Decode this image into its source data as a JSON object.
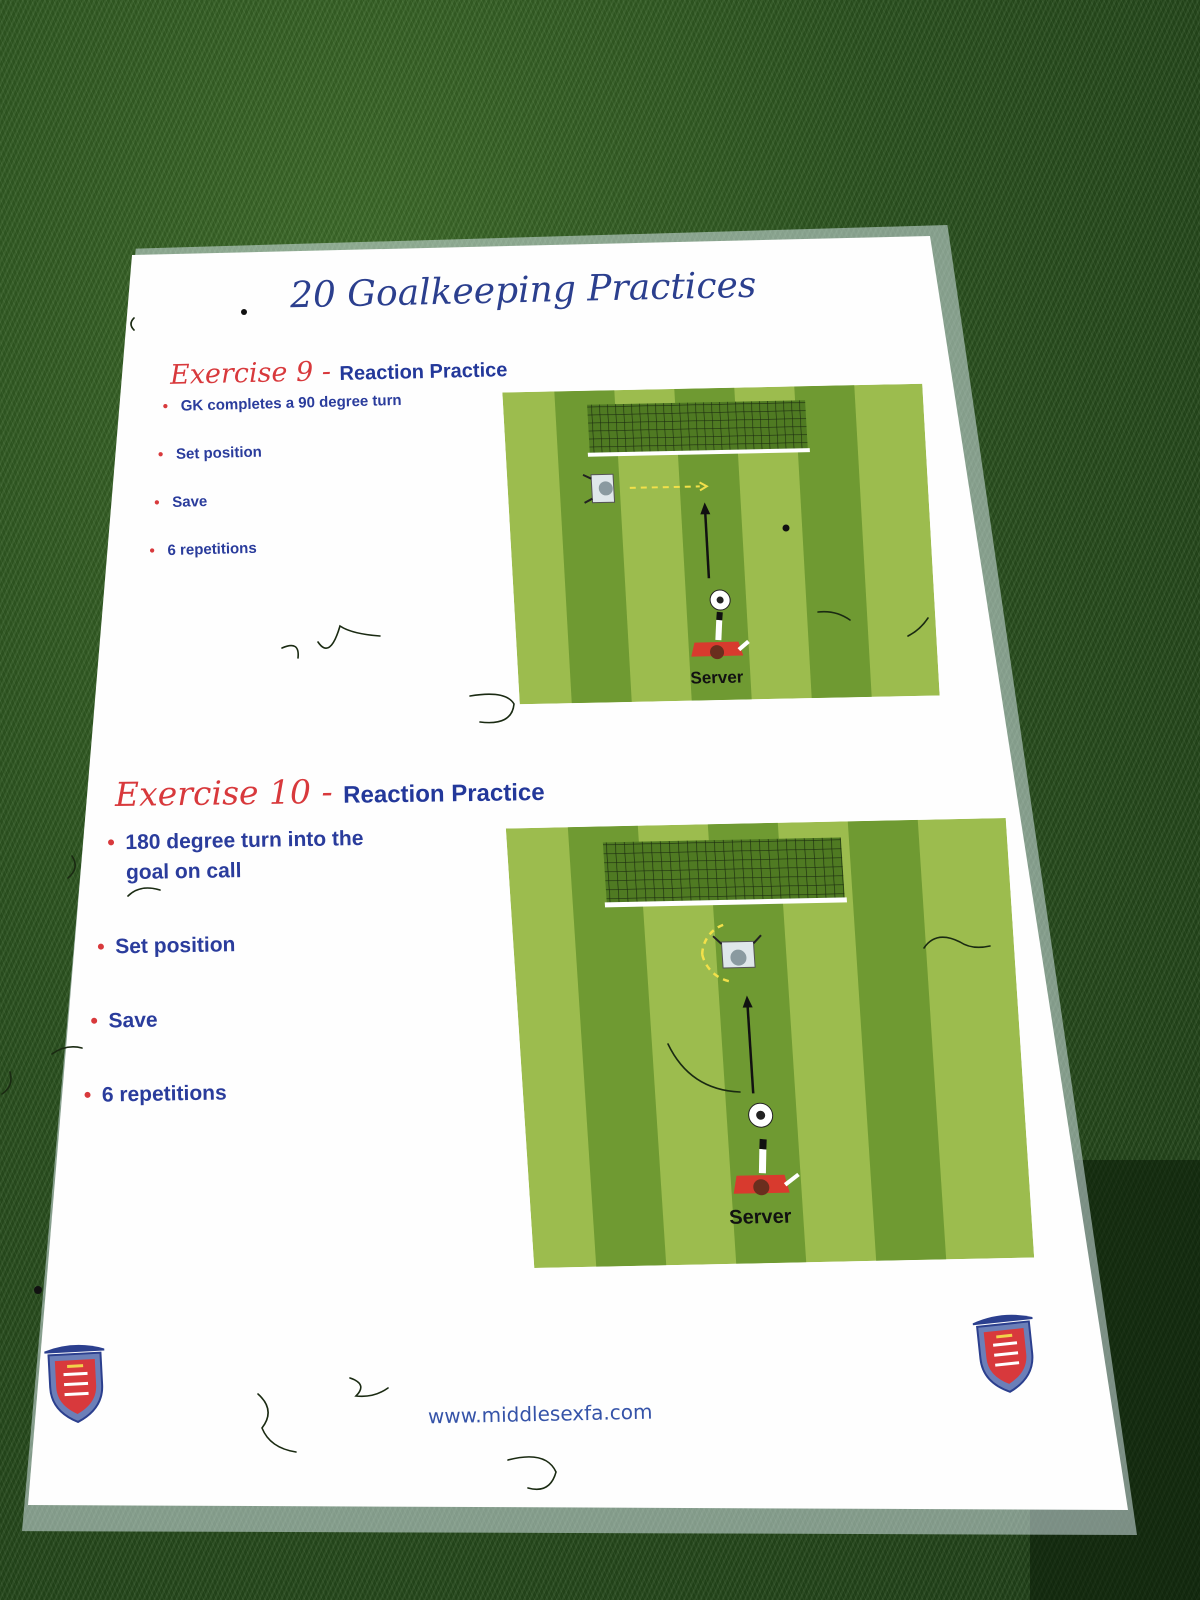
{
  "sheet": {
    "title": "20 Goalkeeping Practices",
    "website": "www.middlesexfa.com"
  },
  "exercises": [
    {
      "number_label": "Exercise 9",
      "separator": " - ",
      "name": "Reaction Practice",
      "bullets": [
        "GK completes a 90 degree turn",
        "Set position",
        "Save",
        "6 repetitions"
      ],
      "diagram_label": "Server"
    },
    {
      "number_label": "Exercise 10",
      "separator": " - ",
      "name": "Reaction Practice",
      "bullets": [
        "180 degree turn into the goal on call",
        "Set position",
        "Save",
        "6 repetitions"
      ],
      "diagram_label": "Server"
    }
  ],
  "colors": {
    "heading_blue": "#2b3f8e",
    "exercise_red": "#d8393c",
    "pitch_light": "#9cbc4e",
    "pitch_dark": "#6f9a32"
  },
  "icons": [
    "goal-net-icon",
    "goalkeeper-icon",
    "football-icon",
    "server-player-icon",
    "county-crest-icon"
  ]
}
